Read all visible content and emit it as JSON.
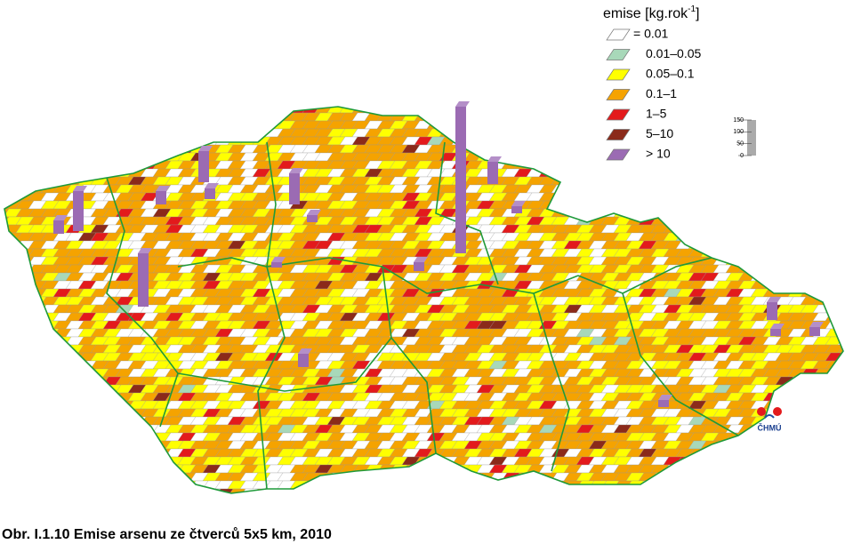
{
  "legend": {
    "title": {
      "text": "emise [kg.rok",
      "superscript": "-1",
      "suffix": "]"
    },
    "items": [
      {
        "label": "= 0.01",
        "color": "#ffffff"
      },
      {
        "label": "0.01–0.05",
        "color": "#a8d8b9"
      },
      {
        "label": "0.05–0.1",
        "color": "#ffff00"
      },
      {
        "label": "0.1–1",
        "color": "#f5a300"
      },
      {
        "label": "1–5",
        "color": "#e31a1c"
      },
      {
        "label": "5–10",
        "color": "#8b2a1a"
      },
      {
        "label": "> 10",
        "color": "#9b6bb3"
      }
    ]
  },
  "scale": {
    "ticks": [
      150,
      100,
      50,
      0
    ]
  },
  "logo": "ČHMÚ",
  "caption": "Obr. I.1.10  Emise arsenu ze čtverců 5x5 km, 2010"
}
